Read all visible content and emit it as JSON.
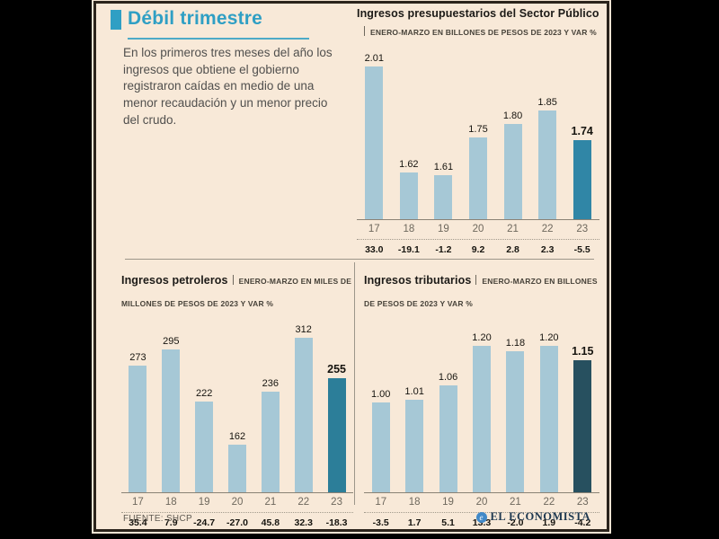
{
  "panel": {
    "background": "#f8e9d8",
    "border_color": "#2b241c"
  },
  "header": {
    "title": "Débil trimestre",
    "accent_color": "#2f9fc4",
    "intro": "En los primeros tres meses del año los ingresos que obtiene el gobierno registraron caídas en medio de una menor recaudación y un menor precio del crudo."
  },
  "footer": {
    "source": "FUENTE: SHCP",
    "brand": "EL ECONOMISTA",
    "brand_icon": "e"
  },
  "chart_data": [
    {
      "id": "presupuestarios",
      "type": "bar",
      "title": "Ingresos presupuestarios del Sector Público",
      "subtitle": "ENERO-MARZO EN BILLONES DE PESOS DE 2023 Y VAR %",
      "categories": [
        "17",
        "18",
        "19",
        "20",
        "21",
        "22",
        "23"
      ],
      "values": [
        2.01,
        1.62,
        1.61,
        1.75,
        1.8,
        1.85,
        1.74
      ],
      "labels": [
        "2.01",
        "1.62",
        "1.61",
        "1.75",
        "1.80",
        "1.85",
        "1.74"
      ],
      "var_pct": [
        "33.0",
        "-19.1",
        "-1.2",
        "9.2",
        "2.8",
        "2.3",
        "-5.5"
      ],
      "ylim": [
        1.45,
        2.01
      ],
      "grid": false,
      "highlight_index": 6,
      "bar_color": "#a6c8d6",
      "highlight_color": "#3086a6"
    },
    {
      "id": "petroleros",
      "type": "bar",
      "title": "Ingresos petroleros",
      "subtitle": "ENERO-MARZO EN MILES DE MILLONES DE PESOS DE 2023 Y VAR %",
      "categories": [
        "17",
        "18",
        "19",
        "20",
        "21",
        "22",
        "23"
      ],
      "values": [
        273,
        295,
        222,
        162,
        236,
        312,
        255
      ],
      "labels": [
        "273",
        "295",
        "222",
        "162",
        "236",
        "312",
        "255"
      ],
      "var_pct": [
        "35.4",
        "7.9",
        "-24.7",
        "-27.0",
        "45.8",
        "32.3",
        "-18.3"
      ],
      "ylim": [
        95,
        312
      ],
      "grid": false,
      "highlight_index": 6,
      "bar_color": "#a6c8d6",
      "highlight_color": "#2c7e99"
    },
    {
      "id": "tributarios",
      "type": "bar",
      "title": "Ingresos tributarios",
      "subtitle": "ENERO-MARZO EN BILLONES DE PESOS DE 2023 Y VAR %",
      "categories": [
        "17",
        "18",
        "19",
        "20",
        "21",
        "22",
        "23"
      ],
      "values": [
        1.0,
        1.01,
        1.06,
        1.2,
        1.18,
        1.2,
        1.15
      ],
      "labels": [
        "1.00",
        "1.01",
        "1.06",
        "1.20",
        "1.18",
        "1.20",
        "1.15"
      ],
      "var_pct": [
        "-3.5",
        "1.7",
        "5.1",
        "13.3",
        "-2.0",
        "1.9",
        "-4.2"
      ],
      "ylim": [
        0.68,
        1.2
      ],
      "grid": false,
      "highlight_index": 6,
      "bar_color": "#a6c8d6",
      "highlight_color": "#27505f"
    }
  ]
}
